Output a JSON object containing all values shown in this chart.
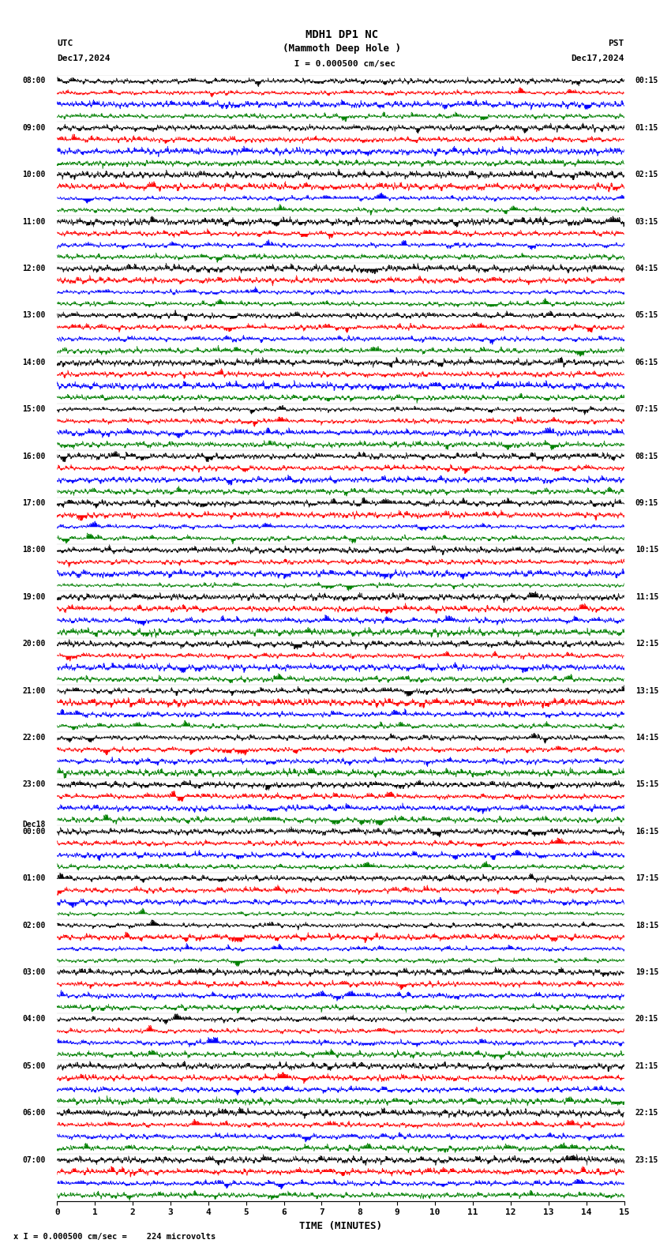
{
  "title_line1": "MDH1 DP1 NC",
  "title_line2": "(Mammoth Deep Hole )",
  "scale_label": " I = 0.000500 cm/sec",
  "bottom_label": "x I = 0.000500 cm/sec =    224 microvolts",
  "utc_label": "UTC",
  "utc_date": "Dec17,2024",
  "pst_label": "PST",
  "pst_date": "Dec17,2024",
  "xlabel": "TIME (MINUTES)",
  "left_times": [
    "08:00",
    "09:00",
    "10:00",
    "11:00",
    "12:00",
    "13:00",
    "14:00",
    "15:00",
    "16:00",
    "17:00",
    "18:00",
    "19:00",
    "20:00",
    "21:00",
    "22:00",
    "23:00",
    "Dec18",
    "00:00",
    "01:00",
    "02:00",
    "03:00",
    "04:00",
    "05:00",
    "06:00",
    "07:00"
  ],
  "right_times": [
    "00:15",
    "01:15",
    "02:15",
    "03:15",
    "04:15",
    "05:15",
    "06:15",
    "07:15",
    "08:15",
    "09:15",
    "10:15",
    "11:15",
    "12:15",
    "13:15",
    "14:15",
    "15:15",
    "16:15",
    "17:15",
    "18:15",
    "19:15",
    "20:15",
    "21:15",
    "22:15",
    "23:15"
  ],
  "n_rows": 24,
  "n_traces_per_row": 4,
  "colors": [
    "black",
    "red",
    "blue",
    "green"
  ],
  "bg_color": "white",
  "xmin": 0,
  "xmax": 15,
  "xticks": [
    0,
    1,
    2,
    3,
    4,
    5,
    6,
    7,
    8,
    9,
    10,
    11,
    12,
    13,
    14,
    15
  ]
}
